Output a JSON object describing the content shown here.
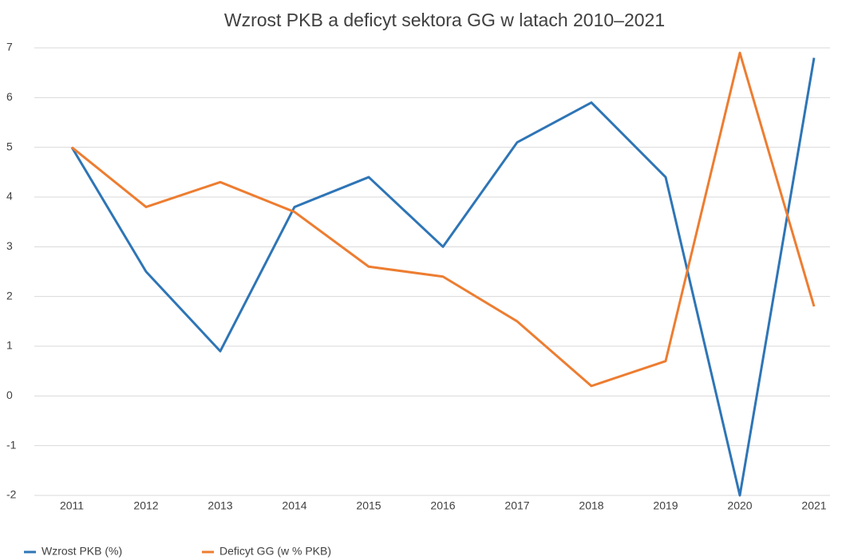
{
  "chart_data": {
    "type": "line",
    "title": "Wzrost PKB a deficyt sektora GG w latach 2010–2021",
    "categories": [
      "2011",
      "2012",
      "2013",
      "2014",
      "2015",
      "2016",
      "2017",
      "2018",
      "2019",
      "2020",
      "2021"
    ],
    "series": [
      {
        "name": "Wzrost PKB (%)",
        "color": "#2e75b6",
        "values": [
          5.0,
          2.5,
          0.9,
          3.8,
          4.4,
          3.0,
          5.1,
          5.9,
          4.4,
          -2.0,
          6.8
        ]
      },
      {
        "name": "Deficyt GG (w % PKB)",
        "color": "#ed7d31",
        "values": [
          5.0,
          3.8,
          4.3,
          3.7,
          2.6,
          2.4,
          1.5,
          0.2,
          0.7,
          6.9,
          1.8
        ]
      }
    ],
    "ylim": [
      -2,
      7
    ],
    "yticks": [
      -2,
      -1,
      0,
      1,
      2,
      3,
      4,
      5,
      6,
      7
    ],
    "grid": true,
    "legend": "bottom"
  }
}
